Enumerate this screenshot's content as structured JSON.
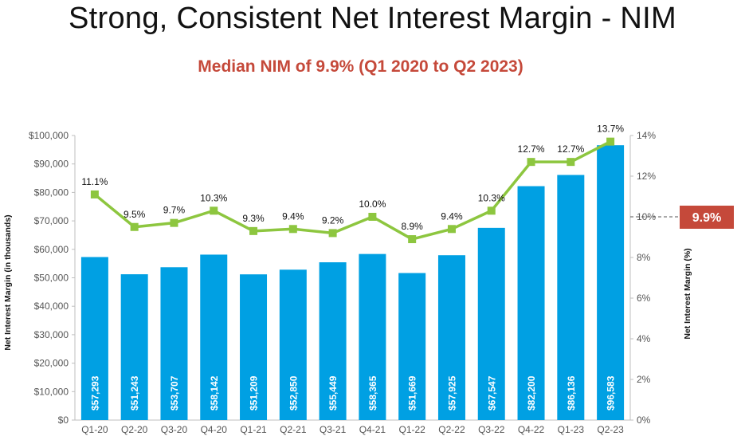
{
  "slide": {
    "title": "Strong, Consistent Net Interest Margin - NIM",
    "subtitle": "Median NIM of 9.9% (Q1 2020 to Q2 2023)"
  },
  "chart_data": {
    "type": "bar",
    "categories": [
      "Q1-20",
      "Q2-20",
      "Q3-20",
      "Q4-20",
      "Q1-21",
      "Q2-21",
      "Q3-21",
      "Q4-21",
      "Q1-22",
      "Q2-22",
      "Q3-22",
      "Q4-22",
      "Q1-23",
      "Q2-23"
    ],
    "series": [
      {
        "name": "Net Interest Margin (in thousands)",
        "type": "bar",
        "axis": "left",
        "color": "#00a0e3",
        "values": [
          57293,
          51243,
          53707,
          58142,
          51209,
          52850,
          55449,
          58365,
          51669,
          57925,
          67547,
          82200,
          86136,
          96583
        ],
        "labels": [
          "$57,293",
          "$51,243",
          "$53,707",
          "$58,142",
          "$51,209",
          "$52,850",
          "$55,449",
          "$58,365",
          "$51,669",
          "$57,925",
          "$67,547",
          "$82,200",
          "$86,136",
          "$96,583"
        ]
      },
      {
        "name": "Net Interest Margin (%)",
        "type": "line",
        "axis": "right",
        "color": "#8dc63f",
        "values": [
          11.1,
          9.5,
          9.7,
          10.3,
          9.3,
          9.4,
          9.2,
          10.0,
          8.9,
          9.4,
          10.3,
          12.7,
          12.7,
          13.7
        ],
        "labels": [
          "11.1%",
          "9.5%",
          "9.7%",
          "10.3%",
          "9.3%",
          "9.4%",
          "9.2%",
          "10.0%",
          "8.9%",
          "9.4%",
          "10.3%",
          "12.7%",
          "12.7%",
          "13.7%"
        ]
      }
    ],
    "y_left": {
      "label": "Net Interest Margin  (in thousands)",
      "ylim": [
        0,
        100000
      ],
      "ticks": [
        0,
        10000,
        20000,
        30000,
        40000,
        50000,
        60000,
        70000,
        80000,
        90000,
        100000
      ],
      "tick_labels": [
        "$0",
        "$10,000",
        "$20,000",
        "$30,000",
        "$40,000",
        "$50,000",
        "$60,000",
        "$70,000",
        "$80,000",
        "$90,000",
        "$100,000"
      ]
    },
    "y_right": {
      "label": "Net Interest Margin (%)",
      "ylim": [
        0,
        14
      ],
      "ticks": [
        0,
        2,
        4,
        6,
        8,
        10,
        12,
        14
      ],
      "tick_labels": [
        "0%",
        "2%",
        "4%",
        "6%",
        "8%",
        "10%",
        "12%",
        "14%"
      ]
    },
    "reference_line": {
      "value": 10,
      "axis": "right",
      "label": "9.9%",
      "color": "#c5493a"
    },
    "grid": false
  }
}
